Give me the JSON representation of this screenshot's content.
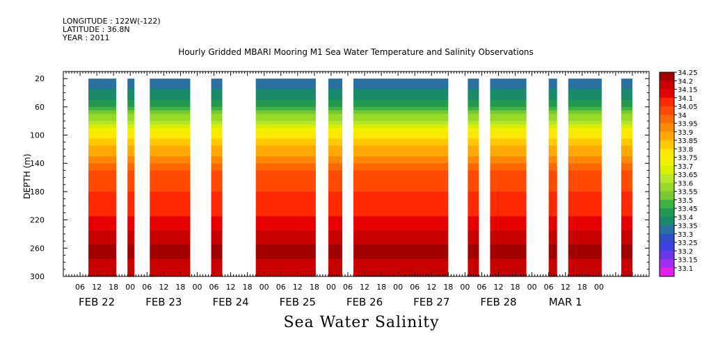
{
  "header": {
    "longitude": "LONGITUDE : 122W(-122)",
    "latitude": "LATITUDE : 36.8N",
    "year": "YEAR : 2011"
  },
  "chart_data": {
    "type": "heatmap",
    "title": "Hourly Gridded MBARI Mooring M1 Sea Water Temperature and Salinity Observations",
    "variable": "Sea Water Salinity",
    "ylabel": "DEPTH (m)",
    "y_ticks": [
      20,
      60,
      100,
      140,
      180,
      220,
      260,
      300
    ],
    "ylim": [
      300,
      0
    ],
    "x_range_hours": [
      0,
      210
    ],
    "x_start": "FEB 22 00",
    "hour_tick_labels": [
      "06",
      "12",
      "18",
      "00",
      "06",
      "12",
      "18",
      "00",
      "06",
      "12",
      "18",
      "00",
      "06",
      "12",
      "18",
      "00",
      "06",
      "12",
      "18",
      "00",
      "06",
      "12",
      "18",
      "00",
      "06",
      "12",
      "18",
      "00",
      "06",
      "12",
      "18",
      "00"
    ],
    "date_labels": [
      {
        "label": "FEB 22",
        "hour": 12
      },
      {
        "label": "FEB 23",
        "hour": 36
      },
      {
        "label": "FEB 24",
        "hour": 60
      },
      {
        "label": "FEB 25",
        "hour": 84
      },
      {
        "label": "FEB 26",
        "hour": 108
      },
      {
        "label": "FEB 27",
        "hour": 132
      },
      {
        "label": "FEB 28",
        "hour": 156
      },
      {
        "label": "MAR  1",
        "hour": 180
      }
    ],
    "data_segments_hours": [
      [
        9,
        19
      ],
      [
        23,
        25.5
      ],
      [
        31,
        45.5
      ],
      [
        53,
        57
      ],
      [
        69,
        90.5
      ],
      [
        95,
        100
      ],
      [
        104,
        138
      ],
      [
        145,
        149
      ],
      [
        153,
        166
      ],
      [
        174,
        177
      ],
      [
        181,
        193
      ],
      [
        200,
        204
      ]
    ],
    "depth_profile": {
      "depths_m": [
        20,
        40,
        60,
        80,
        100,
        120,
        140,
        160,
        180,
        200,
        220,
        240,
        260,
        280,
        300
      ],
      "salinity": [
        33.32,
        33.36,
        33.45,
        33.62,
        33.78,
        33.86,
        33.95,
        34.03,
        34.05,
        34.06,
        34.11,
        34.16,
        34.22,
        34.19,
        34.17
      ]
    },
    "colorbar": {
      "levels": [
        "34.25",
        "34.2",
        "34.15",
        "34.1",
        "34.05",
        "34",
        "33.95",
        "33.9",
        "33.85",
        "33.8",
        "33.75",
        "33.7",
        "33.65",
        "33.6",
        "33.55",
        "33.5",
        "33.45",
        "33.4",
        "33.35",
        "33.3",
        "33.25",
        "33.2",
        "33.15",
        "33.1"
      ],
      "colors": [
        "#a00000",
        "#c80000",
        "#e80000",
        "#ff2a00",
        "#ff4a00",
        "#ff6800",
        "#ff8a00",
        "#ffa800",
        "#ffc800",
        "#ffe800",
        "#f0f000",
        "#d8f000",
        "#b8e628",
        "#98d828",
        "#78c830",
        "#40b040",
        "#209a50",
        "#1a8a6a",
        "#2a70a0",
        "#3050c8",
        "#4040e0",
        "#6a38e8",
        "#a030f0",
        "#e020f0"
      ]
    }
  }
}
